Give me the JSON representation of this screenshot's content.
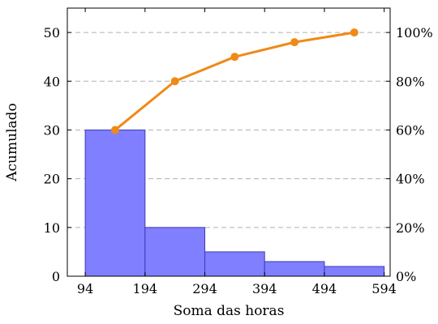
{
  "chart_data": {
    "type": "bar",
    "xlabel": "Soma das horas",
    "ylabel": "Acumulado",
    "x_ticks": [
      "94",
      "194",
      "294",
      "394",
      "494",
      "594"
    ],
    "y_ticks": [
      "0",
      "10",
      "20",
      "30",
      "40",
      "50"
    ],
    "y2_ticks": [
      "0%",
      "20%",
      "40%",
      "60%",
      "80%",
      "100%"
    ],
    "xlim": [
      64,
      604
    ],
    "ylim": [
      0,
      55
    ],
    "y2lim": [
      0,
      110
    ],
    "grid": "horizontal dashed",
    "bins": [
      {
        "start": 94,
        "end": 194,
        "value": 30
      },
      {
        "start": 194,
        "end": 294,
        "value": 10
      },
      {
        "start": 294,
        "end": 394,
        "value": 5
      },
      {
        "start": 394,
        "end": 494,
        "value": 3
      },
      {
        "start": 494,
        "end": 594,
        "value": 2
      }
    ],
    "cumulative_line": {
      "axis": "right",
      "points": [
        {
          "x": 144,
          "y": 60
        },
        {
          "x": 244,
          "y": 80
        },
        {
          "x": 344,
          "y": 90
        },
        {
          "x": 444,
          "y": 96
        },
        {
          "x": 544,
          "y": 100
        }
      ]
    },
    "colors": {
      "bar_fill": "#7f7fff",
      "bar_stroke": "#3d3db8",
      "line": "#ef8a17",
      "grid": "#b0b0b0"
    }
  }
}
